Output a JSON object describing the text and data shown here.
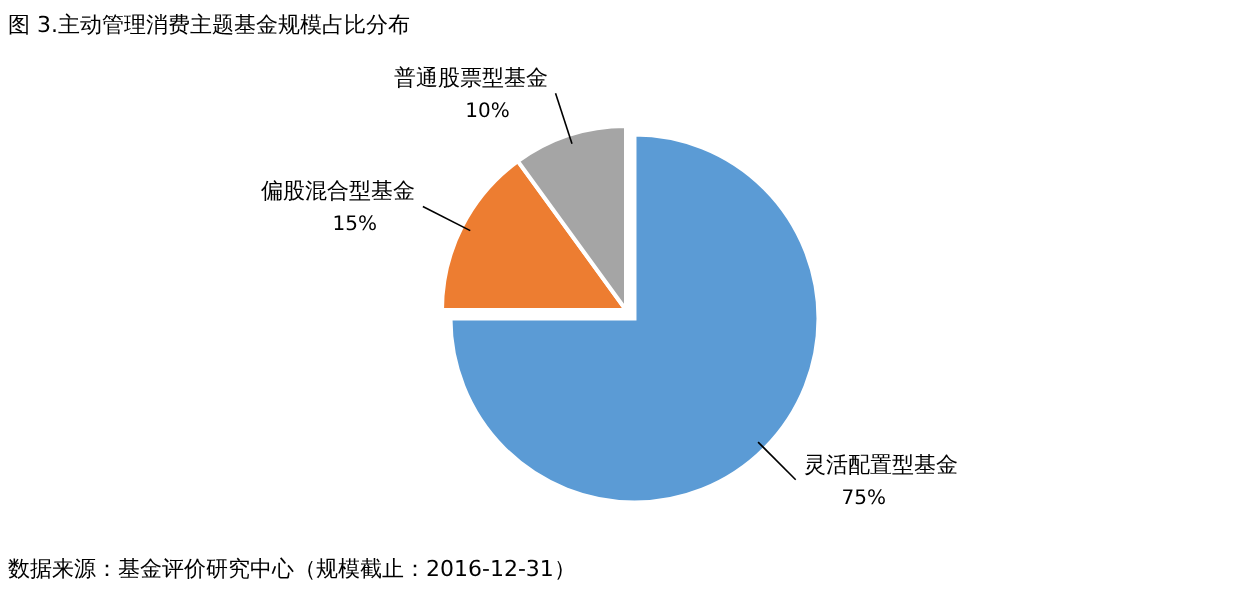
{
  "chart_data": {
    "type": "pie",
    "title": "图 3.主动管理消费主题基金规模占比分布",
    "categories": [
      "灵活配置型基金",
      "偏股混合型基金",
      "普通股票型基金"
    ],
    "values": [
      75,
      15,
      10
    ],
    "colors": [
      "#5b9bd5",
      "#ed7d31",
      "#a5a5a5"
    ],
    "value_labels": [
      "75%",
      "15%",
      "10%"
    ],
    "annotations": [
      "数据来源：基金评价研究中心（规模截止：2016-12-31）"
    ]
  }
}
